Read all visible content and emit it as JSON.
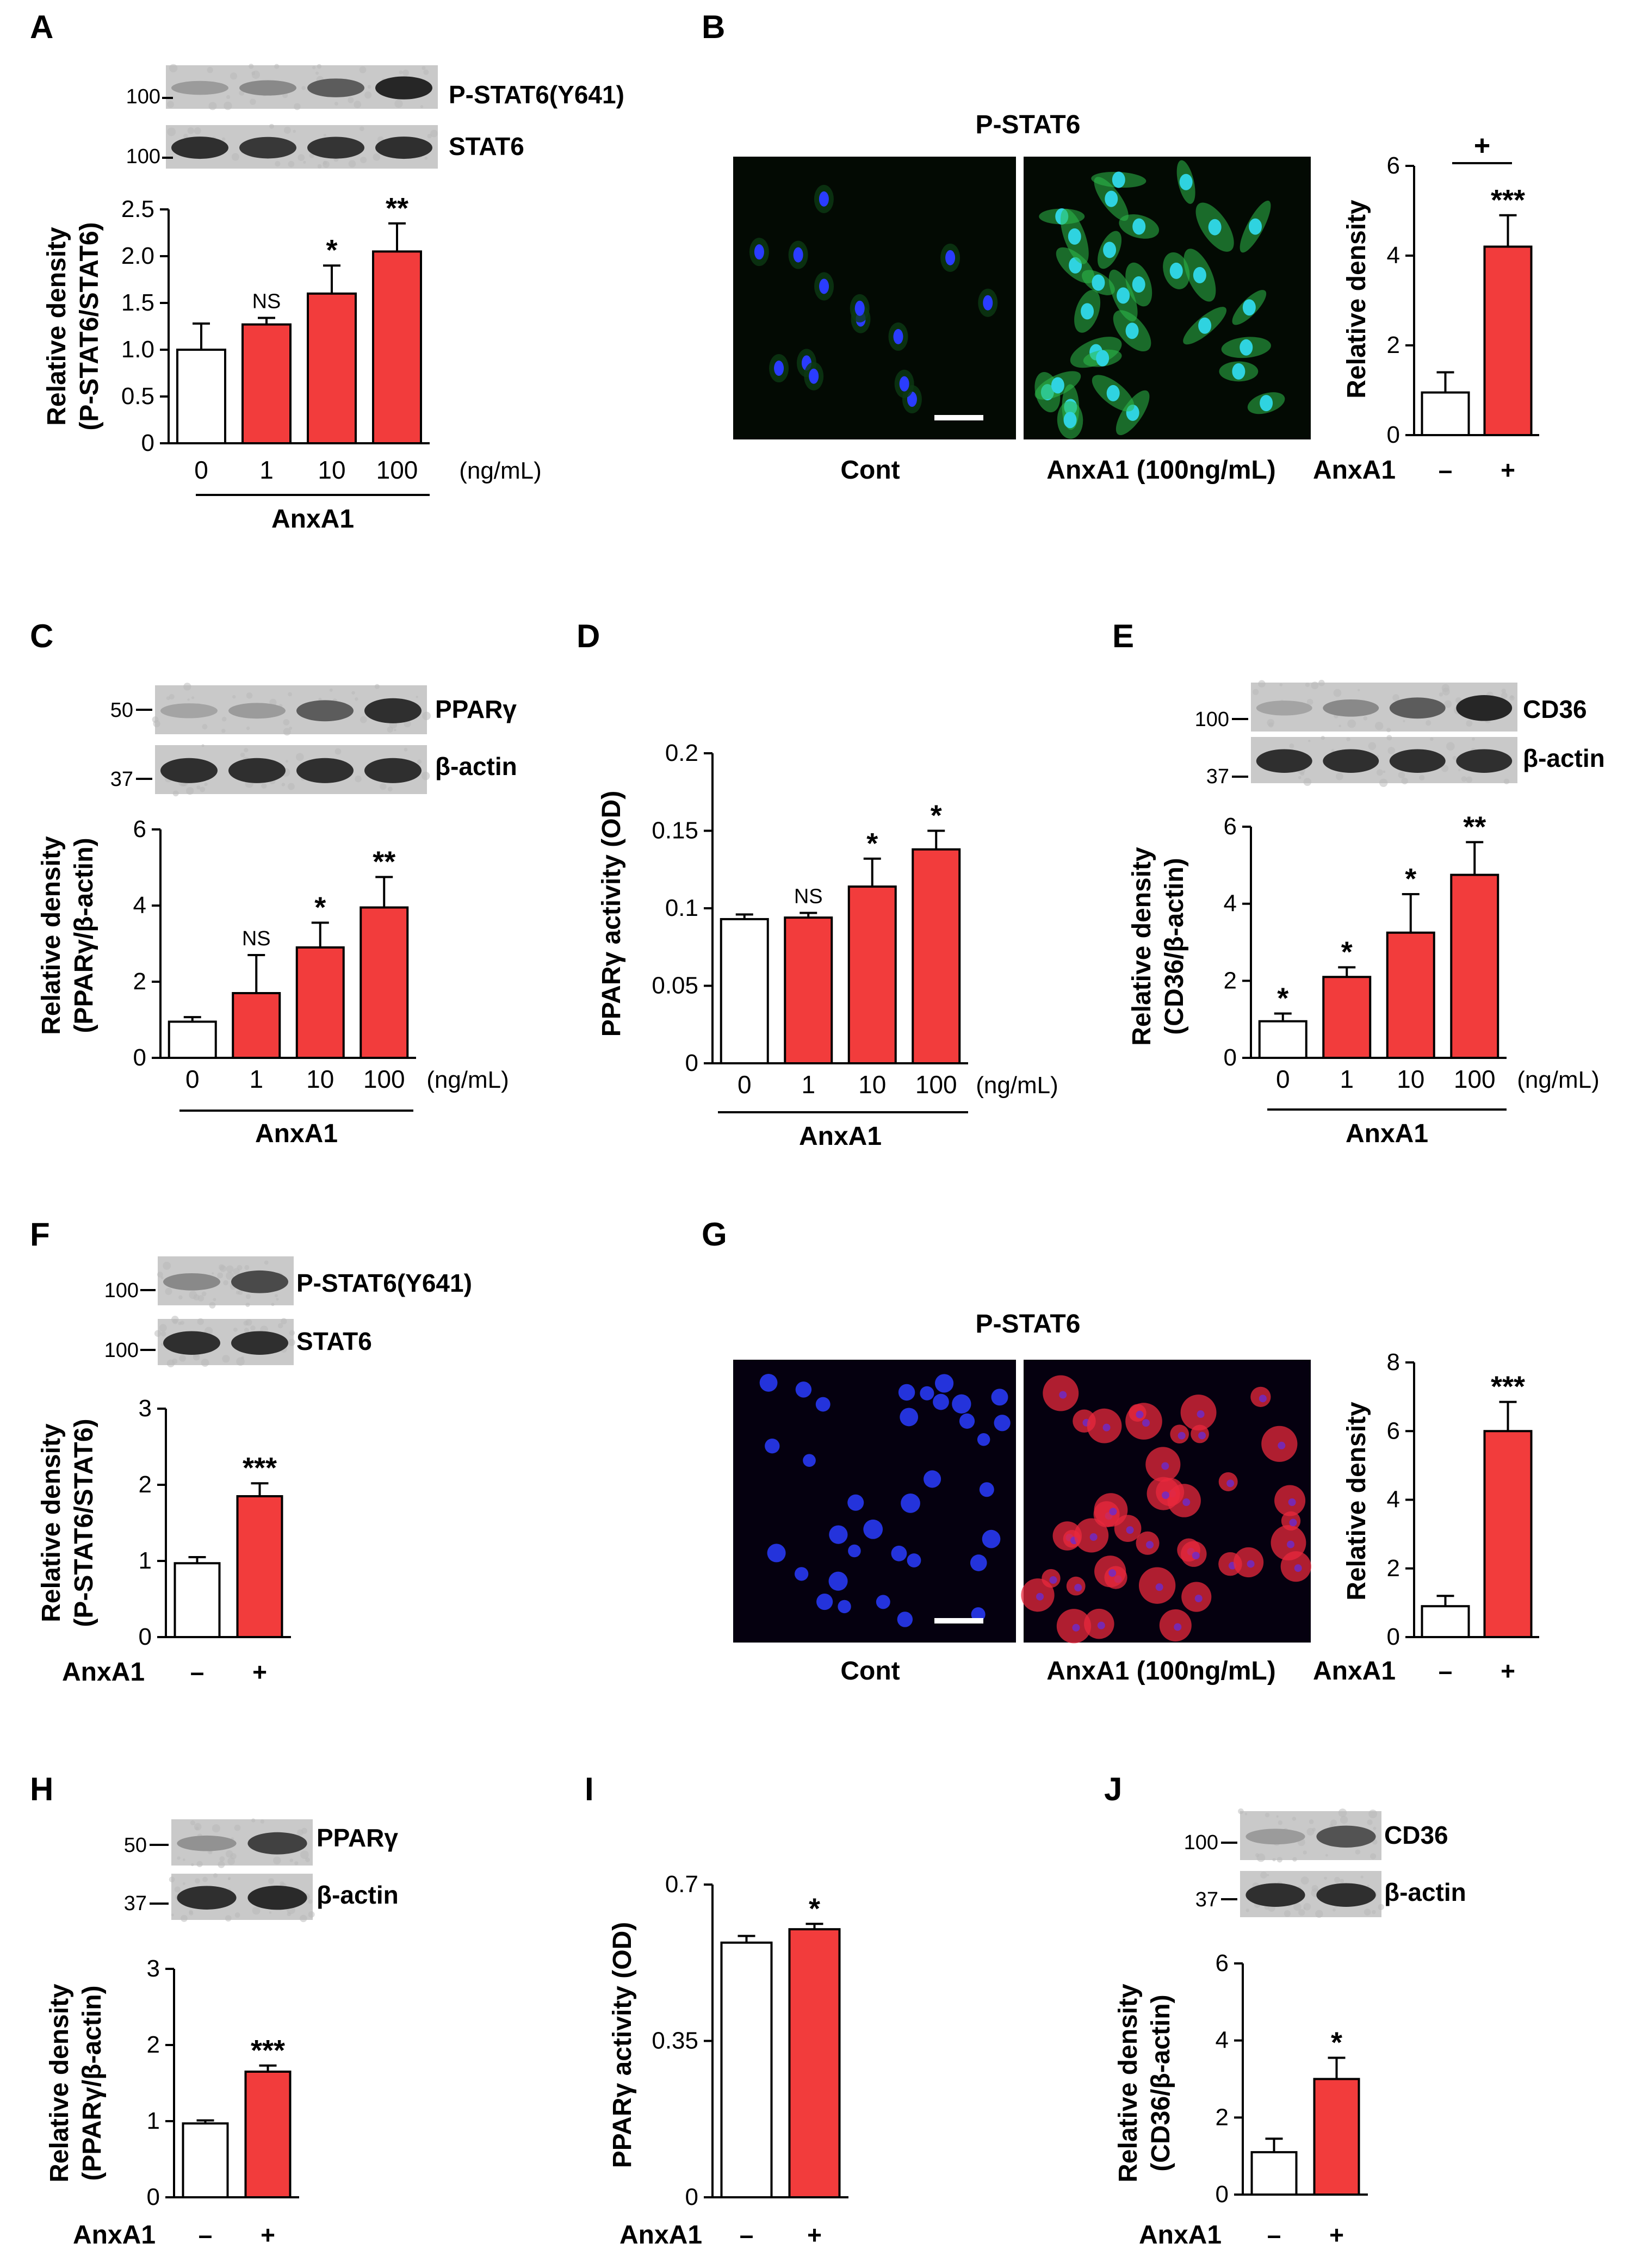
{
  "colors": {
    "control": "#ffffff",
    "treated": "#f23c3c",
    "axis": "#000000",
    "green_stain": "#2dbb4a",
    "red_stain": "#e8283c",
    "nuclei": "#2a3cff"
  },
  "panels": {
    "A": {
      "letter": "A",
      "blot_labels": [
        "P-STAT6(Y641)",
        "STAT6"
      ],
      "markers": [
        "100",
        "100"
      ],
      "ylabel": [
        "Relative density",
        "(P-STAT6/STAT6)"
      ],
      "ticks": [
        "0",
        "0.5",
        "1.0",
        "1.5",
        "2.0",
        "2.5"
      ],
      "categories": [
        "0",
        "1",
        "10",
        "100"
      ],
      "unit": "(ng/mL)",
      "group": "AnxA1",
      "sig": [
        "",
        "NS",
        "*",
        "**"
      ]
    },
    "B": {
      "letter": "B",
      "image_title": "P-STAT6",
      "image_labels": [
        "Cont",
        "AnxA1 (100ng/mL)"
      ],
      "ylabel": "Relative density",
      "ticks": [
        "0",
        "2",
        "4",
        "6"
      ],
      "treat_label": "AnxA1",
      "categories": [
        "–",
        "+"
      ],
      "sig": [
        "",
        "***"
      ],
      "bracket_sig": "+"
    },
    "C": {
      "letter": "C",
      "blot_labels": [
        "PPARγ",
        "β-actin"
      ],
      "markers": [
        "50",
        "37"
      ],
      "ylabel": [
        "Relative density",
        "(PPARγ/β-actin)"
      ],
      "ticks": [
        "0",
        "2",
        "4",
        "6"
      ],
      "categories": [
        "0",
        "1",
        "10",
        "100"
      ],
      "unit": "(ng/mL)",
      "group": "AnxA1",
      "sig": [
        "",
        "NS",
        "*",
        "**"
      ]
    },
    "D": {
      "letter": "D",
      "ylabel": "PPARγ activity (OD)",
      "ticks": [
        "0",
        "0.05",
        "0.1",
        "0.15",
        "0.2"
      ],
      "categories": [
        "0",
        "1",
        "10",
        "100"
      ],
      "unit": "(ng/mL)",
      "group": "AnxA1",
      "sig": [
        "",
        "NS",
        "*",
        "*"
      ]
    },
    "E": {
      "letter": "E",
      "blot_labels": [
        "CD36",
        "β-actin"
      ],
      "markers": [
        "100",
        "37"
      ],
      "ylabel": [
        "Relative density",
        "(CD36/β-actin)"
      ],
      "ticks": [
        "0",
        "2",
        "4",
        "6"
      ],
      "categories": [
        "0",
        "1",
        "10",
        "100"
      ],
      "unit": "(ng/mL)",
      "group": "AnxA1",
      "sig": [
        "*",
        "*",
        "*",
        "**"
      ]
    },
    "F": {
      "letter": "F",
      "blot_labels": [
        "P-STAT6(Y641)",
        "STAT6"
      ],
      "markers": [
        "100",
        "100"
      ],
      "ylabel": [
        "Relative density",
        "(P-STAT6/STAT6)"
      ],
      "ticks": [
        "0",
        "1",
        "2",
        "3"
      ],
      "treat_label": "AnxA1",
      "categories": [
        "–",
        "+"
      ],
      "sig": [
        "",
        "***"
      ]
    },
    "G": {
      "letter": "G",
      "image_title": "P-STAT6",
      "image_labels": [
        "Cont",
        "AnxA1 (100ng/mL)"
      ],
      "ylabel": "Relative density",
      "ticks": [
        "0",
        "2",
        "4",
        "6",
        "8"
      ],
      "treat_label": "AnxA1",
      "categories": [
        "–",
        "+"
      ],
      "sig": [
        "",
        "***"
      ]
    },
    "H": {
      "letter": "H",
      "blot_labels": [
        "PPARγ",
        "β-actin"
      ],
      "markers": [
        "50",
        "37"
      ],
      "ylabel": [
        "Relative density",
        "(PPARγ/β-actin)"
      ],
      "ticks": [
        "0",
        "1",
        "2",
        "3"
      ],
      "treat_label": "AnxA1",
      "categories": [
        "–",
        "+"
      ],
      "sig": [
        "",
        "***"
      ]
    },
    "I": {
      "letter": "I",
      "ylabel": "PPARγ activity (OD)",
      "ticks": [
        "0",
        "0.35",
        "0.7"
      ],
      "treat_label": "AnxA1",
      "categories": [
        "–",
        "+"
      ],
      "sig": [
        "",
        "*"
      ]
    },
    "J": {
      "letter": "J",
      "blot_labels": [
        "CD36",
        "β-actin"
      ],
      "markers": [
        "100",
        "37"
      ],
      "ylabel": [
        "Relative density",
        "(CD36/β-actin)"
      ],
      "ticks": [
        "0",
        "2",
        "4",
        "6"
      ],
      "treat_label": "AnxA1",
      "categories": [
        "–",
        "+"
      ],
      "sig": [
        "",
        "*"
      ]
    }
  },
  "chart_data": [
    {
      "panel": "A",
      "type": "bar",
      "categories": [
        "0",
        "1",
        "10",
        "100"
      ],
      "values": [
        1.0,
        1.27,
        1.6,
        2.05
      ],
      "errors": [
        0.28,
        0.07,
        0.3,
        0.3
      ],
      "ylim": [
        0,
        2.5
      ],
      "xlabel": "AnxA1",
      "ylabel": "Relative density (P-STAT6/STAT6)"
    },
    {
      "panel": "B",
      "type": "bar",
      "categories": [
        "–",
        "+"
      ],
      "values": [
        0.95,
        4.2
      ],
      "errors": [
        0.45,
        0.7
      ],
      "ylim": [
        0,
        6
      ],
      "xlabel": "AnxA1",
      "ylabel": "Relative density"
    },
    {
      "panel": "C",
      "type": "bar",
      "categories": [
        "0",
        "1",
        "10",
        "100"
      ],
      "values": [
        0.95,
        1.7,
        2.9,
        3.95
      ],
      "errors": [
        0.12,
        1.0,
        0.65,
        0.8
      ],
      "ylim": [
        0,
        6
      ],
      "xlabel": "AnxA1",
      "ylabel": "Relative density (PPARγ/β-actin)"
    },
    {
      "panel": "D",
      "type": "bar",
      "categories": [
        "0",
        "1",
        "10",
        "100"
      ],
      "values": [
        0.093,
        0.094,
        0.114,
        0.138
      ],
      "errors": [
        0.003,
        0.003,
        0.018,
        0.012
      ],
      "ylim": [
        0,
        0.2
      ],
      "xlabel": "AnxA1",
      "ylabel": "PPARγ activity (OD)"
    },
    {
      "panel": "E",
      "type": "bar",
      "categories": [
        "0",
        "1",
        "10",
        "100"
      ],
      "values": [
        0.95,
        2.1,
        3.25,
        4.75
      ],
      "errors": [
        0.2,
        0.25,
        1.0,
        0.85
      ],
      "ylim": [
        0,
        6
      ],
      "xlabel": "AnxA1",
      "ylabel": "Relative density (CD36/β-actin)"
    },
    {
      "panel": "F",
      "type": "bar",
      "categories": [
        "–",
        "+"
      ],
      "values": [
        0.97,
        1.85
      ],
      "errors": [
        0.08,
        0.17
      ],
      "ylim": [
        0,
        3
      ],
      "xlabel": "AnxA1",
      "ylabel": "Relative density (P-STAT6/STAT6)"
    },
    {
      "panel": "G",
      "type": "bar",
      "categories": [
        "–",
        "+"
      ],
      "values": [
        0.9,
        6.0
      ],
      "errors": [
        0.3,
        0.85
      ],
      "ylim": [
        0,
        8
      ],
      "xlabel": "AnxA1",
      "ylabel": "Relative density"
    },
    {
      "panel": "H",
      "type": "bar",
      "categories": [
        "–",
        "+"
      ],
      "values": [
        0.97,
        1.65
      ],
      "errors": [
        0.04,
        0.08
      ],
      "ylim": [
        0,
        3
      ],
      "xlabel": "AnxA1",
      "ylabel": "Relative density (PPARγ/β-actin)"
    },
    {
      "panel": "I",
      "type": "bar",
      "categories": [
        "–",
        "+"
      ],
      "values": [
        0.57,
        0.6
      ],
      "errors": [
        0.015,
        0.012
      ],
      "ylim": [
        0,
        0.7
      ],
      "xlabel": "AnxA1",
      "ylabel": "PPARγ activity (OD)"
    },
    {
      "panel": "J",
      "type": "bar",
      "categories": [
        "–",
        "+"
      ],
      "values": [
        1.1,
        3.0
      ],
      "errors": [
        0.35,
        0.55
      ],
      "ylim": [
        0,
        6
      ],
      "xlabel": "AnxA1",
      "ylabel": "Relative density (CD36/β-actin)"
    }
  ]
}
